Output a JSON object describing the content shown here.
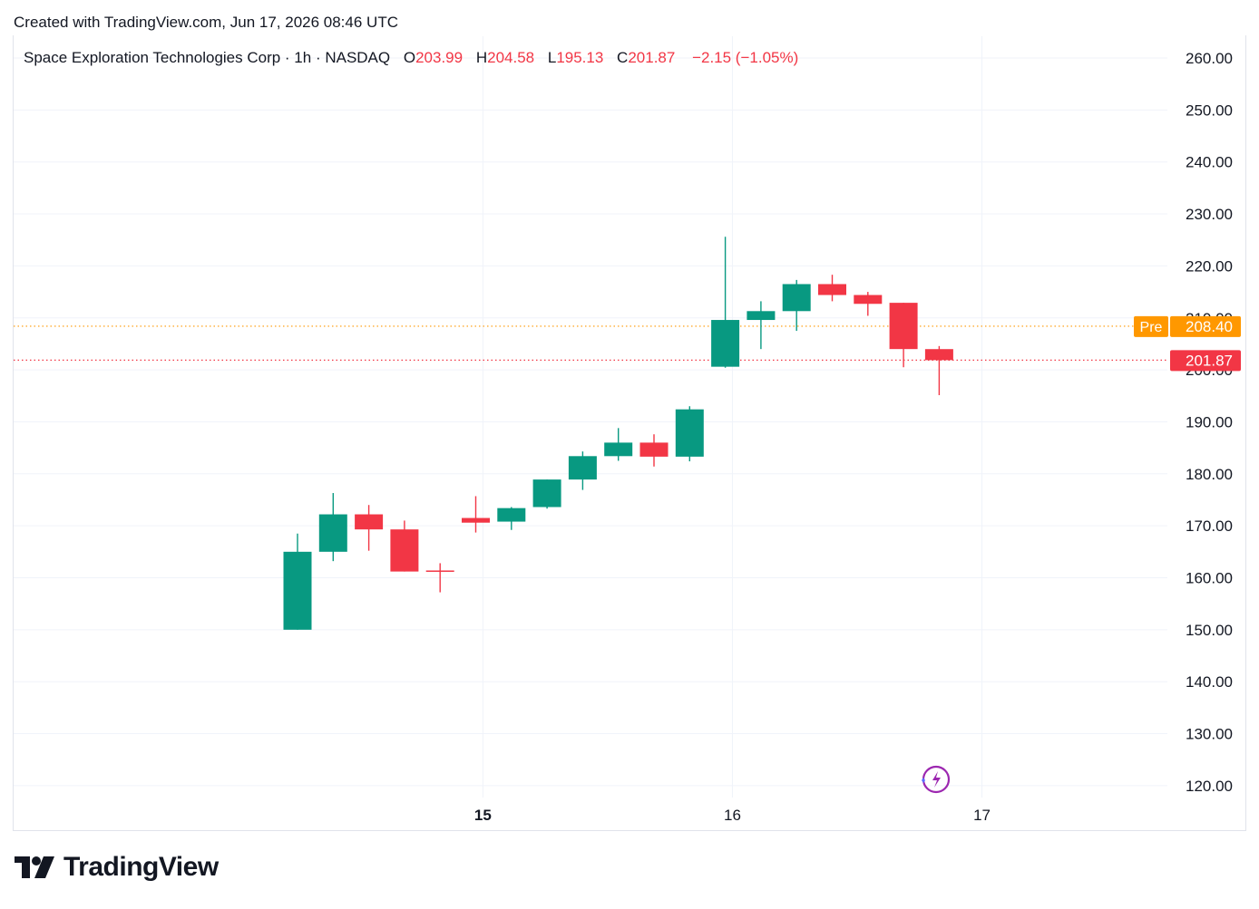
{
  "header": {
    "created_text": "Created with TradingView.com, Jun 17, 2026 08:46 UTC"
  },
  "legend": {
    "symbol": "Space Exploration Technologies Corp · 1h · NASDAQ",
    "open_label": "O",
    "open": "203.99",
    "high_label": "H",
    "high": "204.58",
    "low_label": "L",
    "low": "195.13",
    "close_label": "C",
    "close": "201.87",
    "change": "−2.15 (−1.05%)"
  },
  "price_tags": {
    "pre_label": "Pre",
    "pre_value": "208.40",
    "last_value": "201.87"
  },
  "colors": {
    "up": "#089981",
    "down": "#f23645",
    "pre": "#ff9800",
    "grid": "#f0f3fa",
    "text": "#131722"
  },
  "footer": {
    "brand": "TradingView",
    "logo_icon": "tradingview-logo-icon"
  },
  "corner_icon": "lightning-sparkle-icon",
  "chart_data": {
    "type": "candlestick",
    "interval": "1h",
    "x_ticks": [
      {
        "label": "15",
        "bar_index": 5.2,
        "bold": true
      },
      {
        "label": "16",
        "bar_index": 12.2,
        "bold": false
      },
      {
        "label": "17",
        "bar_index": 19.2,
        "bold": false
      }
    ],
    "y_ticks": [
      "120.00",
      "130.00",
      "140.00",
      "150.00",
      "160.00",
      "170.00",
      "180.00",
      "190.00",
      "200.00",
      "210.00",
      "220.00",
      "230.00",
      "240.00",
      "250.00",
      "260.00"
    ],
    "ylim": [
      117.5,
      263.5
    ],
    "grid": true,
    "pre_market_price": 208.4,
    "last_price": 201.87,
    "candles": [
      {
        "o": 150.0,
        "h": 168.5,
        "l": 150.0,
        "c": 165.0
      },
      {
        "o": 165.0,
        "h": 176.3,
        "l": 163.2,
        "c": 172.2
      },
      {
        "o": 172.2,
        "h": 174.0,
        "l": 165.2,
        "c": 169.3
      },
      {
        "o": 169.3,
        "h": 171.0,
        "l": 161.2,
        "c": 161.2
      },
      {
        "o": 161.4,
        "h": 162.8,
        "l": 157.2,
        "c": 161.3
      },
      {
        "o": 171.5,
        "h": 175.7,
        "l": 168.7,
        "c": 170.6
      },
      {
        "o": 170.8,
        "h": 173.6,
        "l": 169.2,
        "c": 173.4
      },
      {
        "o": 173.6,
        "h": 178.9,
        "l": 173.3,
        "c": 178.9
      },
      {
        "o": 178.9,
        "h": 184.3,
        "l": 176.9,
        "c": 183.4
      },
      {
        "o": 183.4,
        "h": 188.8,
        "l": 182.5,
        "c": 186.0
      },
      {
        "o": 186.0,
        "h": 187.6,
        "l": 181.4,
        "c": 183.3
      },
      {
        "o": 183.3,
        "h": 193.0,
        "l": 182.4,
        "c": 192.4
      },
      {
        "o": 200.6,
        "h": 225.6,
        "l": 200.4,
        "c": 209.6
      },
      {
        "o": 209.6,
        "h": 213.2,
        "l": 204.0,
        "c": 211.3
      },
      {
        "o": 211.3,
        "h": 217.3,
        "l": 207.5,
        "c": 216.5
      },
      {
        "o": 216.5,
        "h": 218.3,
        "l": 213.2,
        "c": 214.4
      },
      {
        "o": 214.4,
        "h": 215.0,
        "l": 210.4,
        "c": 212.7
      },
      {
        "o": 212.9,
        "h": 212.9,
        "l": 200.5,
        "c": 204.0
      },
      {
        "o": 203.99,
        "h": 204.58,
        "l": 195.13,
        "c": 201.87
      }
    ]
  }
}
